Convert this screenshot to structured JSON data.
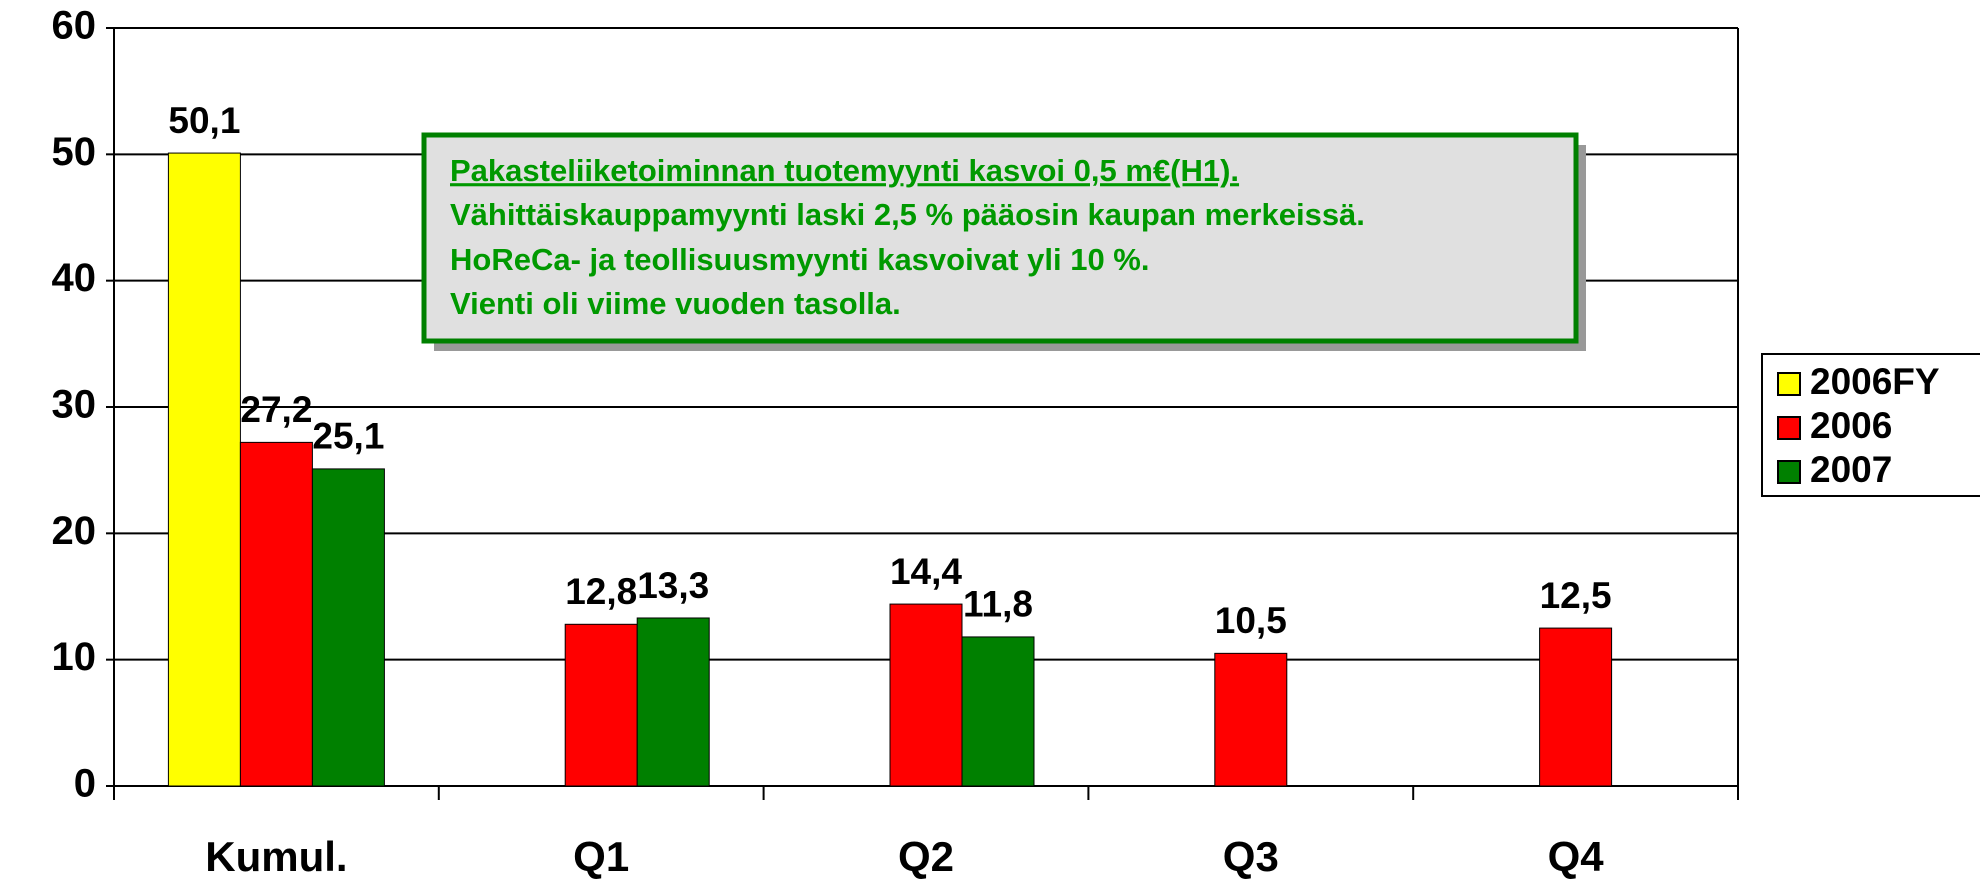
{
  "chart_data": {
    "type": "bar",
    "categories": [
      "Kumul.",
      "Q1",
      "Q2",
      "Q3",
      "Q4"
    ],
    "series": [
      {
        "name": "2006FY",
        "color": "#ffff00",
        "values": [
          50.1,
          null,
          null,
          null,
          null
        ],
        "value_labels": [
          "50,1",
          null,
          null,
          null,
          null
        ]
      },
      {
        "name": "2006",
        "color": "#ff0000",
        "values": [
          27.2,
          12.8,
          14.4,
          10.5,
          12.5
        ],
        "value_labels": [
          "27,2",
          "12,8",
          "14,4",
          "10,5",
          "12,5"
        ]
      },
      {
        "name": "2007",
        "color": "#008000",
        "values": [
          25.1,
          13.3,
          11.8,
          null,
          null
        ],
        "value_labels": [
          "25,1",
          "13,3",
          "11,8",
          null,
          null
        ]
      }
    ],
    "ylim": [
      0,
      60
    ],
    "yticks": [
      0,
      10,
      20,
      30,
      40,
      50,
      60
    ],
    "grid": true,
    "legend": "right",
    "annotation": [
      "Pakasteliiketoiminnan tuotemyynti kasvoi 0,5 m€(H1).",
      "Vähittäiskauppamyynti laski 2,5 % pääosin kaupan merkeissä.",
      "HoReCa- ja teollisuusmyynti kasvoivat yli 10 %.",
      "Vienti oli viime vuoden tasolla."
    ]
  }
}
